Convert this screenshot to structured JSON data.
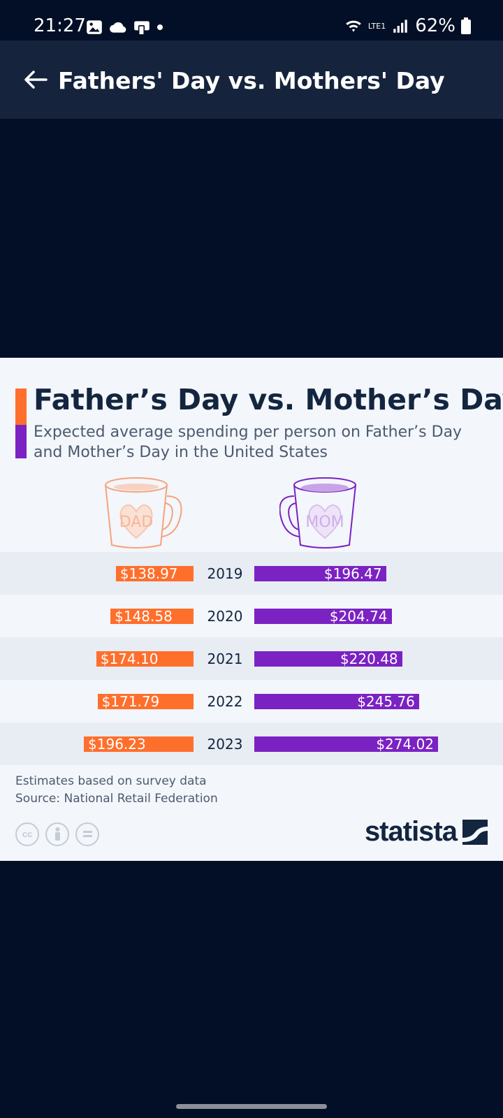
{
  "status_bar": {
    "time": "21:27",
    "battery": "62%",
    "network": "LTE1"
  },
  "app_bar": {
    "title": "Fathers' Day vs. Mothers' Day"
  },
  "chart": {
    "title": "Father’s Day vs. Mother’s Day",
    "subtitle": "Expected average spending per person on Father’s Day and Mother’s Day in the United States",
    "mug_dad_text": "DAD",
    "mug_mom_text": "MOM",
    "footnote_line1": "Estimates based on survey data",
    "footnote_line2": "Source: National Retail Federation",
    "brand": "statista"
  },
  "chart_data": {
    "type": "bar",
    "title": "Father’s Day vs. Mother’s Day",
    "subtitle": "Expected average spending per person on Father’s Day and Mother’s Day in the United States",
    "categories": [
      "2019",
      "2020",
      "2021",
      "2022",
      "2023"
    ],
    "series": [
      {
        "name": "Father’s Day",
        "color": "#ff6f2c",
        "values": [
          138.97,
          148.58,
          174.1,
          171.79,
          196.23
        ],
        "labels": [
          "$138.97",
          "$148.58",
          "$174.10",
          "$171.79",
          "$196.23"
        ]
      },
      {
        "name": "Mother’s Day",
        "color": "#7b22c3",
        "values": [
          196.47,
          204.74,
          220.48,
          245.76,
          274.02
        ],
        "labels": [
          "$196.47",
          "$204.74",
          "$220.48",
          "$245.76",
          "$274.02"
        ]
      }
    ],
    "orientation": "horizontal-butterfly",
    "band_colors": [
      "#e8ecf3",
      "#f3f6fb"
    ]
  }
}
